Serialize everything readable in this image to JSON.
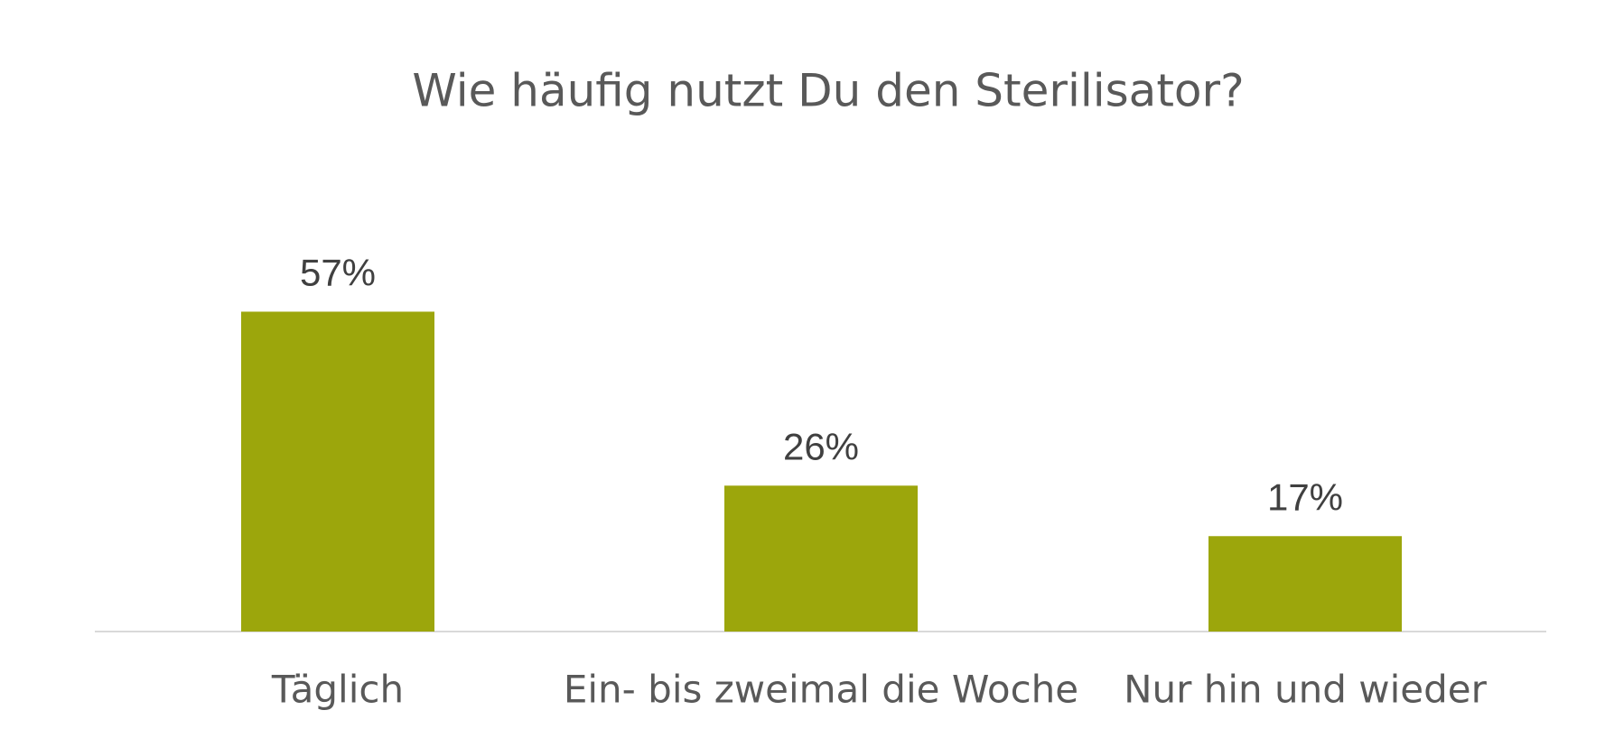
{
  "chart_data": {
    "type": "bar",
    "title": "Wie häufig nutzt Du den Sterilisator?",
    "categories": [
      "Täglich",
      "Ein- bis zweimal die Woche",
      "Nur hin und wieder"
    ],
    "values": [
      57,
      26,
      17
    ],
    "value_labels": [
      "57%",
      "26%",
      "17%"
    ],
    "color": "#9ca60c"
  }
}
